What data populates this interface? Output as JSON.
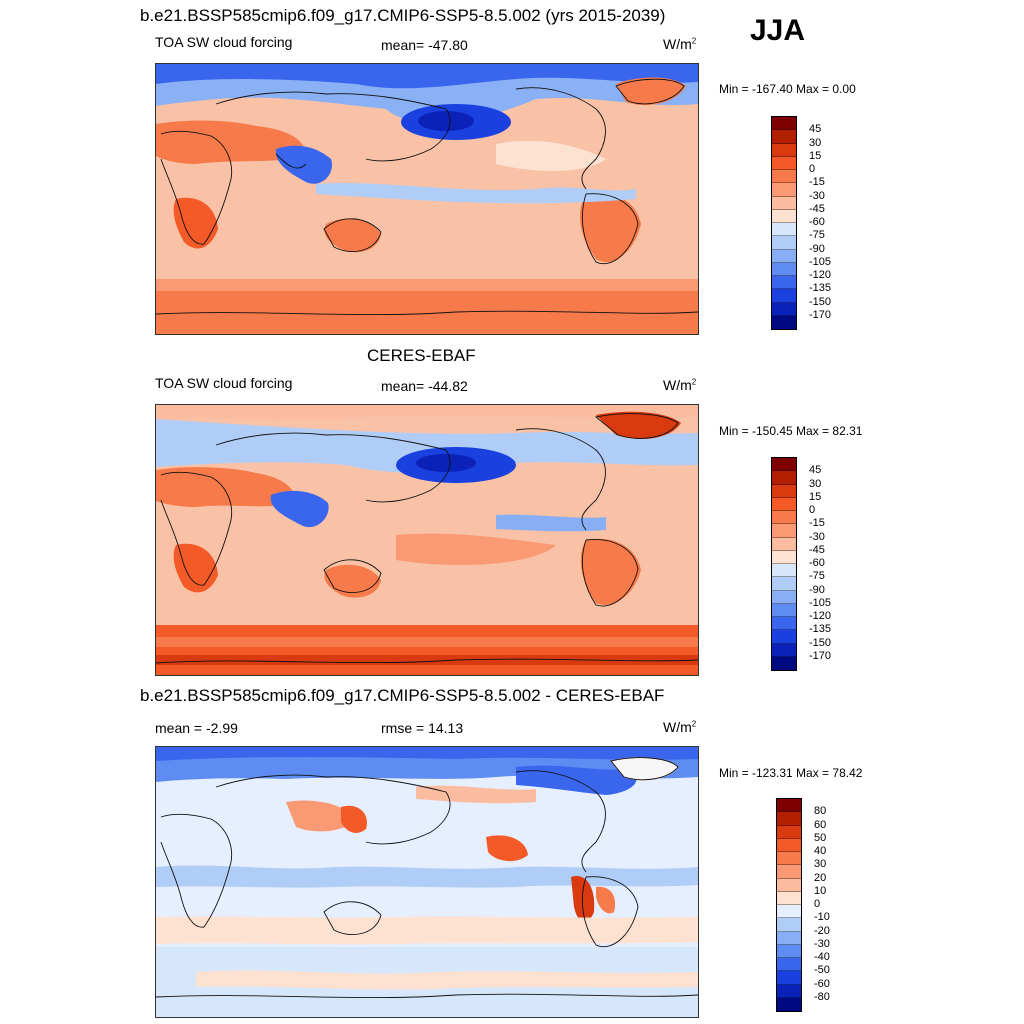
{
  "season": "JJA",
  "panels": [
    {
      "title": "b.e21.BSSP585cmip6.f09_g17.CMIP6-SSP5-8.5.002 (yrs 2015-2039)",
      "left_label": "TOA SW cloud forcing",
      "center_label": "mean= -47.80",
      "unit": "W/m",
      "unit_sup": "2",
      "minmax": "Min = -167.40 Max =   0.00",
      "colorbar_labels": [
        "45",
        "30",
        "15",
        "0",
        "-15",
        "-30",
        "-45",
        "-60",
        "-75",
        "-90",
        "-105",
        "-120",
        "-135",
        "-150",
        "-170"
      ],
      "colorbar_colors": [
        "#7f0000",
        "#b22000",
        "#d93a10",
        "#f45a28",
        "#f77a4a",
        "#f99a75",
        "#fbbca0",
        "#fde2d2",
        "#d6e6fb",
        "#b0cdf8",
        "#88aef5",
        "#5f8cf2",
        "#3a66ee",
        "#1a40e0",
        "#0a22b8",
        "#000a80"
      ]
    },
    {
      "title": "CERES-EBAF",
      "left_label": "TOA SW cloud forcing",
      "center_label": "mean= -44.82",
      "unit": "W/m",
      "unit_sup": "2",
      "minmax": "Min = -150.45 Max =  82.31",
      "colorbar_labels": [
        "45",
        "30",
        "15",
        "0",
        "-15",
        "-30",
        "-45",
        "-60",
        "-75",
        "-90",
        "-105",
        "-120",
        "-135",
        "-150",
        "-170"
      ],
      "colorbar_colors": [
        "#7f0000",
        "#b22000",
        "#d93a10",
        "#f45a28",
        "#f77a4a",
        "#f99a75",
        "#fbbca0",
        "#fde2d2",
        "#d6e6fb",
        "#b0cdf8",
        "#88aef5",
        "#5f8cf2",
        "#3a66ee",
        "#1a40e0",
        "#0a22b8",
        "#000a80"
      ]
    },
    {
      "title": "b.e21.BSSP585cmip6.f09_g17.CMIP6-SSP5-8.5.002 - CERES-EBAF",
      "left_label": "mean =  -2.99",
      "center_label": "rmse =  14.13",
      "unit": "W/m",
      "unit_sup": "2",
      "minmax": "Min = -123.31 Max =  78.42",
      "colorbar_labels": [
        "80",
        "60",
        "50",
        "40",
        "30",
        "20",
        "10",
        "0",
        "-10",
        "-20",
        "-30",
        "-40",
        "-50",
        "-60",
        "-80"
      ],
      "colorbar_colors": [
        "#7f0000",
        "#b22000",
        "#d93a10",
        "#f45a28",
        "#f77a4a",
        "#f99a75",
        "#fbbca0",
        "#fde2d2",
        "#e6efff",
        "#b0cdf8",
        "#88aef5",
        "#5f8cf2",
        "#3a66ee",
        "#1a40e0",
        "#0a22b8",
        "#000a80"
      ]
    }
  ]
}
